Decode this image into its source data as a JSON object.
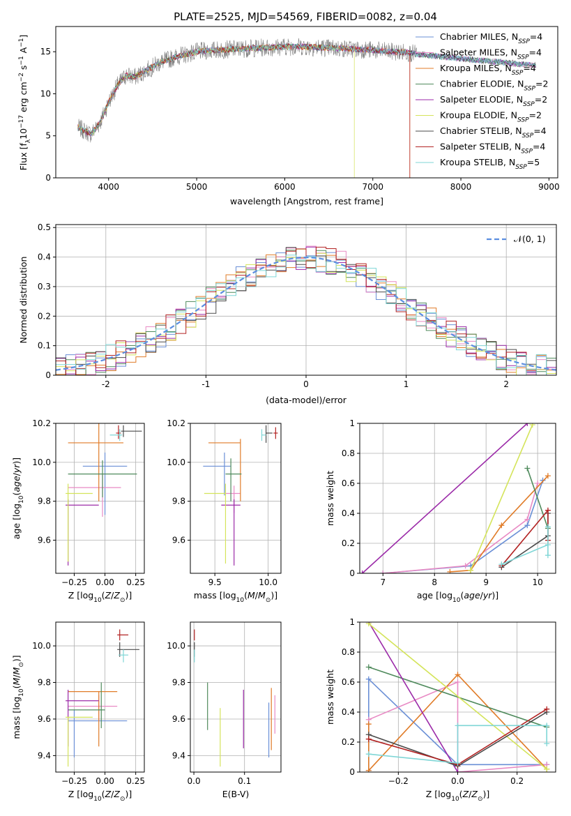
{
  "figure": {
    "title": "PLATE=2525, MJD=54569, FIBERID=0082, z=0.04"
  },
  "colors": [
    "#6a8fd6",
    "#e88ac4",
    "#e07b27",
    "#4f8a5c",
    "#9b2aa8",
    "#d4e45a",
    "#4a4a4a",
    "#b22222",
    "#7fd6d6"
  ],
  "chart_data": [
    {
      "type": "line",
      "title": "PLATE=2525, MJD=54569, FIBERID=0082, z=0.04",
      "xlabel": "wavelength [Angstrom, rest frame]",
      "ylabel": "Flux [fλ10⁻¹⁷ erg cm⁻² s⁻¹ A⁻¹]",
      "xlim": [
        3400,
        9100
      ],
      "ylim": [
        0,
        18
      ],
      "xticks": [
        4000,
        5000,
        6000,
        7000,
        8000,
        9000
      ],
      "yticks": [
        0,
        5,
        10,
        15
      ],
      "grid": false,
      "legend": "upper right",
      "x_range": [
        3650,
        8850
      ],
      "series": [
        {
          "name": "Chabrier MILES, N_SSP=4"
        },
        {
          "name": "Salpeter MILES, N_SSP=4"
        },
        {
          "name": "Kroupa MILES, N_SSP=4"
        },
        {
          "name": "Chabrier ELODIE, N_SSP=2"
        },
        {
          "name": "Salpeter ELODIE, N_SSP=2"
        },
        {
          "name": "Kroupa ELODIE, N_SSP=2"
        },
        {
          "name": "Chabrier STELIB, N_SSP=4"
        },
        {
          "name": "Salpeter STELIB, N_SSP=4"
        },
        {
          "name": "Kroupa STELIB, N_SSP=5"
        }
      ],
      "continuum": {
        "x": [
          3650,
          3800,
          3900,
          4000,
          4100,
          4200,
          4300,
          4400,
          4600,
          4800,
          5000,
          5200,
          5400,
          5600,
          5800,
          6000,
          6200,
          6400,
          6600,
          6800,
          7000,
          7200,
          7400,
          7500,
          7600,
          7800,
          8000,
          8200,
          8400,
          8600,
          8800
        ],
        "y": [
          6.0,
          5.2,
          6.5,
          9.0,
          11.0,
          12.2,
          12.0,
          12.6,
          13.8,
          14.5,
          15.0,
          15.2,
          15.3,
          15.4,
          15.5,
          15.6,
          15.6,
          15.5,
          15.4,
          15.3,
          15.2,
          15.0,
          14.9,
          14.7,
          14.6,
          14.4,
          14.2,
          14.0,
          13.8,
          13.6,
          13.4
        ]
      }
    },
    {
      "type": "histogram",
      "xlabel": "(data-model)/error",
      "ylabel": "Normed distribution",
      "xlim": [
        -2.5,
        2.5
      ],
      "ylim": [
        0,
        0.51
      ],
      "xticks": [
        -2,
        -1,
        0,
        1,
        2
      ],
      "yticks": [
        0.0,
        0.1,
        0.2,
        0.3,
        0.4,
        0.5
      ],
      "grid": true,
      "legend": "upper right",
      "reference": {
        "name": "𝒩(0, 1)",
        "color": "#5b8ee0"
      },
      "bin_width": 0.1,
      "bins_start": -2.5
    },
    {
      "type": "errorbar",
      "xlabel": "Z [log₁₀(Z/Z⊙)]",
      "ylabel": "age  [log₁₀(age/yr)]",
      "xlim": [
        -0.4,
        0.32
      ],
      "ylim": [
        9.43,
        10.2
      ],
      "xticks": [
        -0.25,
        0.0,
        0.25
      ],
      "xticklabels": [
        "−0.25",
        "0.00",
        "0.25"
      ],
      "yticks": [
        9.6,
        9.8,
        10.0,
        10.2
      ],
      "yticklabels": [
        "9.6",
        "9.8",
        "10.0",
        "10.2"
      ],
      "grid": true,
      "points": [
        {
          "x": 0.0,
          "xerr": [
            0.18,
            0.18
          ],
          "y": 9.98,
          "yerr": [
            0.25,
            0.07
          ]
        },
        {
          "x": -0.02,
          "xerr": [
            0.28,
            0.15
          ],
          "y": 9.87,
          "yerr": [
            0.15,
            0.07
          ]
        },
        {
          "x": -0.05,
          "xerr": [
            0.25,
            0.2
          ],
          "y": 10.1,
          "yerr": [
            0.3,
            0.1
          ]
        },
        {
          "x": -0.02,
          "xerr": [
            0.28,
            0.28
          ],
          "y": 9.94,
          "yerr": [
            0.12,
            0.07
          ]
        },
        {
          "x": -0.3,
          "xerr": [
            0.02,
            0.25
          ],
          "y": 9.78,
          "yerr": [
            0.31,
            0.03
          ]
        },
        {
          "x": -0.3,
          "xerr": [
            0.02,
            0.2
          ],
          "y": 9.84,
          "yerr": [
            0.35,
            0.05
          ]
        },
        {
          "x": 0.15,
          "xerr": [
            0.02,
            0.15
          ],
          "y": 10.16,
          "yerr": [
            0.03,
            0.03
          ]
        },
        {
          "x": 0.11,
          "xerr": [
            0.02,
            0.02
          ],
          "y": 10.15,
          "yerr": [
            0.03,
            0.04
          ]
        },
        {
          "x": 0.12,
          "xerr": [
            0.08,
            0.02
          ],
          "y": 10.14,
          "yerr": [
            0.03,
            0.03
          ]
        }
      ]
    },
    {
      "type": "errorbar",
      "xlabel": "mass [log₁₀(M/M⊙)]",
      "ylabel": "",
      "xlim": [
        9.27,
        10.12
      ],
      "ylim": [
        9.43,
        10.2
      ],
      "xticks": [
        9.5,
        10.0
      ],
      "xticklabels": [
        "9.5",
        "10.0"
      ],
      "yticks": [
        9.6,
        9.8,
        10.0,
        10.2
      ],
      "yticklabels": [
        "9.6",
        "9.8",
        "10.0",
        "10.2"
      ],
      "grid": true,
      "points": [
        {
          "x": 9.59,
          "xerr": [
            0.2,
            0.06
          ],
          "y": 9.98,
          "yerr": [
            0.15,
            0.07
          ]
        },
        {
          "x": 9.68,
          "xerr": [
            0.08,
            0.06
          ],
          "y": 9.84,
          "yerr": [
            0.1,
            0.04
          ]
        },
        {
          "x": 9.74,
          "xerr": [
            0.3,
            0.0
          ],
          "y": 10.1,
          "yerr": [
            0.3,
            0.02
          ]
        },
        {
          "x": 9.65,
          "xerr": [
            0.05,
            0.1
          ],
          "y": 9.94,
          "yerr": [
            0.14,
            0.08
          ]
        },
        {
          "x": 9.68,
          "xerr": [
            0.12,
            0.06
          ],
          "y": 9.78,
          "yerr": [
            0.31,
            0.03
          ]
        },
        {
          "x": 9.6,
          "xerr": [
            0.2,
            0.0
          ],
          "y": 9.84,
          "yerr": [
            0.36,
            0.05
          ]
        },
        {
          "x": 9.98,
          "xerr": [
            0.0,
            0.06
          ],
          "y": 10.15,
          "yerr": [
            0.05,
            0.04
          ]
        },
        {
          "x": 10.07,
          "xerr": [
            0.02,
            0.02
          ],
          "y": 10.15,
          "yerr": [
            0.03,
            0.03
          ]
        },
        {
          "x": 9.94,
          "xerr": [
            0.0,
            0.04
          ],
          "y": 10.14,
          "yerr": [
            0.03,
            0.03
          ]
        }
      ]
    },
    {
      "type": "line",
      "xlabel": "age  [log₁₀(age/yr)]",
      "ylabel": "mass weight",
      "xlim": [
        6.55,
        10.35
      ],
      "ylim": [
        0,
        1
      ],
      "xticks": [
        7,
        8,
        9,
        10
      ],
      "yticks": [
        0.0,
        0.2,
        0.4,
        0.6,
        0.8,
        1.0
      ],
      "grid": true,
      "series": [
        {
          "x": [
            7.0,
            8.7,
            9.8,
            10.1
          ],
          "y": [
            0.0,
            0.05,
            0.32,
            0.62
          ]
        },
        {
          "x": [
            7.0,
            8.6,
            9.8,
            10.0
          ],
          "y": [
            0.0,
            0.05,
            0.36,
            0.6
          ]
        },
        {
          "x": [
            8.3,
            8.7,
            9.3,
            10.2
          ],
          "y": [
            0.01,
            0.02,
            0.32,
            0.65
          ]
        },
        {
          "x": [
            9.8,
            10.2
          ],
          "y": [
            0.7,
            0.3
          ]
        },
        {
          "x": [
            6.6,
            9.8
          ],
          "y": [
            0.0,
            1.0
          ]
        },
        {
          "x": [
            8.7,
            9.9
          ],
          "y": [
            0.02,
            0.99
          ]
        },
        {
          "x": [
            9.3,
            10.2,
            10.2
          ],
          "y": [
            0.04,
            0.25,
            0.4
          ]
        },
        {
          "x": [
            9.3,
            10.2,
            10.2
          ],
          "y": [
            0.05,
            0.42,
            0.22
          ]
        },
        {
          "x": [
            9.3,
            10.2,
            10.2,
            10.2
          ],
          "y": [
            0.06,
            0.19,
            0.31,
            0.12
          ]
        }
      ]
    },
    {
      "type": "errorbar",
      "xlabel": "Z [log₁₀(Z/Z⊙)]",
      "ylabel": "mass [log₁₀(M/M⊙)]",
      "xlim": [
        -0.4,
        0.32
      ],
      "ylim": [
        9.31,
        10.13
      ],
      "xticks": [
        -0.25,
        0.0,
        0.25
      ],
      "xticklabels": [
        "−0.25",
        "0.00",
        "0.25"
      ],
      "yticks": [
        9.4,
        9.6,
        9.8,
        10.0
      ],
      "yticklabels": [
        "9.4",
        "9.6",
        "9.8",
        "10.0"
      ],
      "grid": true,
      "points": [
        {
          "x": -0.25,
          "xerr": [
            0.05,
            0.43
          ],
          "y": 9.59,
          "yerr": [
            0.2,
            0.06
          ]
        },
        {
          "x": -0.05,
          "xerr": [
            0.25,
            0.15
          ],
          "y": 9.67,
          "yerr": [
            0.08,
            0.06
          ]
        },
        {
          "x": -0.05,
          "xerr": [
            0.25,
            0.15
          ],
          "y": 9.75,
          "yerr": [
            0.3,
            0.0
          ]
        },
        {
          "x": -0.03,
          "xerr": [
            0.27,
            0.03
          ],
          "y": 9.65,
          "yerr": [
            0.1,
            0.15
          ]
        },
        {
          "x": -0.3,
          "xerr": [
            0.02,
            0.25
          ],
          "y": 9.7,
          "yerr": [
            0.25,
            0.06
          ]
        },
        {
          "x": -0.3,
          "xerr": [
            0.02,
            0.2
          ],
          "y": 9.61,
          "yerr": [
            0.27,
            0.0
          ]
        },
        {
          "x": 0.12,
          "xerr": [
            0.02,
            0.16
          ],
          "y": 9.98,
          "yerr": [
            0.04,
            0.04
          ]
        },
        {
          "x": 0.12,
          "xerr": [
            0.02,
            0.07
          ],
          "y": 10.06,
          "yerr": [
            0.03,
            0.03
          ]
        },
        {
          "x": 0.15,
          "xerr": [
            0.04,
            0.04
          ],
          "y": 9.95,
          "yerr": [
            0.04,
            0.03
          ]
        }
      ]
    },
    {
      "type": "errorbar",
      "xlabel": "E(B-V)",
      "ylabel": "",
      "xlim": [
        -0.007,
        0.172
      ],
      "ylim": [
        9.31,
        10.13
      ],
      "xticks": [
        0.0,
        0.1
      ],
      "xticklabels": [
        "0.0",
        "0.1"
      ],
      "yticks": [
        9.4,
        9.6,
        9.8,
        10.0
      ],
      "yticklabels": [
        "9.4",
        "9.6",
        "9.8",
        "10.0"
      ],
      "grid": true,
      "points": [
        {
          "x": 0.148,
          "y": 9.59,
          "yerr": [
            0.2,
            0.1
          ]
        },
        {
          "x": 0.16,
          "y": 9.62,
          "yerr": [
            0.1,
            0.11
          ]
        },
        {
          "x": 0.153,
          "y": 9.6,
          "yerr": [
            0.17,
            0.17
          ]
        },
        {
          "x": 0.027,
          "y": 9.67,
          "yerr": [
            0.13,
            0.13
          ]
        },
        {
          "x": 0.098,
          "y": 9.6,
          "yerr": [
            0.16,
            0.16
          ]
        },
        {
          "x": 0.052,
          "y": 9.5,
          "yerr": [
            0.16,
            0.16
          ]
        },
        {
          "x": 0.001,
          "y": 9.98,
          "yerr": [
            0.04,
            0.04
          ]
        },
        {
          "x": 0.001,
          "y": 10.06,
          "yerr": [
            0.03,
            0.03
          ]
        },
        {
          "x": 0.001,
          "y": 9.95,
          "yerr": [
            0.04,
            0.03
          ]
        }
      ]
    },
    {
      "type": "line",
      "xlabel": "Z [log₁₀(Z/Z⊙)]",
      "ylabel": "mass weight",
      "xlim": [
        -0.33,
        0.33
      ],
      "ylim": [
        0,
        1
      ],
      "xticks": [
        -0.2,
        0.0,
        0.2
      ],
      "xticklabels": [
        "−0.2",
        "0.0",
        "0.2"
      ],
      "yticks": [
        0.0,
        0.2,
        0.4,
        0.6,
        0.8,
        1.0
      ],
      "grid": true,
      "series": [
        {
          "x": [
            -0.3,
            -0.3,
            0.0,
            0.3
          ],
          "y": [
            0.01,
            0.62,
            0.05,
            0.05
          ]
        },
        {
          "x": [
            -0.3,
            0.0,
            0.0,
            0.3
          ],
          "y": [
            0.35,
            0.6,
            0.0,
            0.05
          ]
        },
        {
          "x": [
            -0.3,
            -0.3,
            0.0,
            0.3
          ],
          "y": [
            0.32,
            0.01,
            0.65,
            0.02
          ]
        },
        {
          "x": [
            -0.3,
            0.3
          ],
          "y": [
            0.7,
            0.3
          ]
        },
        {
          "x": [
            -0.3,
            0.0
          ],
          "y": [
            1.0,
            0.0
          ]
        },
        {
          "x": [
            -0.3,
            0.3
          ],
          "y": [
            0.99,
            0.02
          ]
        },
        {
          "x": [
            -0.3,
            0.0,
            0.3
          ],
          "y": [
            0.25,
            0.04,
            0.4
          ]
        },
        {
          "x": [
            -0.3,
            0.0,
            0.3
          ],
          "y": [
            0.22,
            0.05,
            0.42
          ]
        },
        {
          "x": [
            -0.3,
            0.0,
            0.0,
            0.3,
            0.3
          ],
          "y": [
            0.12,
            0.06,
            0.31,
            0.31,
            0.19
          ]
        }
      ]
    }
  ]
}
